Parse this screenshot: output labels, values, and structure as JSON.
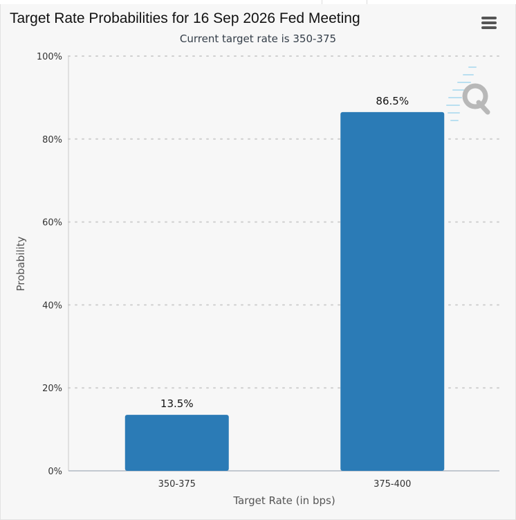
{
  "title": "Target Rate Probabilities for 16 Sep 2026 Fed Meeting",
  "subtitle": "Current target rate is 350-375",
  "menu_icon": "hamburger-menu-icon",
  "watermark_icon": "q-logo-icon",
  "chart_data": {
    "type": "bar",
    "title": "Target Rate Probabilities for 16 Sep 2026 Fed Meeting",
    "subtitle": "Current target rate is 350-375",
    "categories": [
      "350-375",
      "375-400"
    ],
    "values": [
      13.5,
      86.5
    ],
    "data_labels": [
      "13.5%",
      "86.5%"
    ],
    "xlabel": "Target Rate (in bps)",
    "ylabel": "Probability",
    "ylim": [
      0,
      100
    ],
    "yticks": [
      0,
      20,
      40,
      60,
      80,
      100
    ],
    "ytick_labels": [
      "0%",
      "20%",
      "40%",
      "60%",
      "80%",
      "100%"
    ],
    "grid": true,
    "bar_color": "#2b7bb6",
    "legend": "none"
  }
}
